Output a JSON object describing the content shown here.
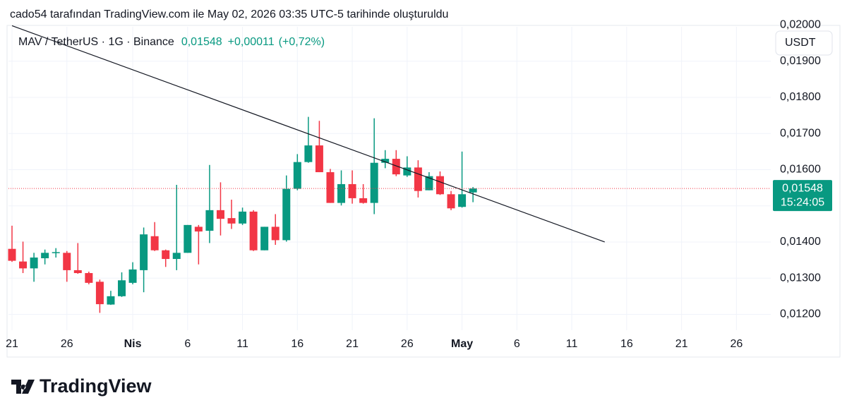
{
  "header": "cado54 tarafından TradingView.com ile May 02, 2026 03:35 UTC-5 tarihinde oluşturuldu",
  "brand": "TradingView",
  "chart_data": {
    "type": "candlestick",
    "symbol": "MAV / TetherUS · 1G · Binance",
    "last_price": {
      "value": 0.01548,
      "label": "0,01548"
    },
    "change": {
      "value": 0.00011,
      "label": "+0,00011"
    },
    "change_pct": {
      "value": 0.72,
      "label": "(+0,72%)"
    },
    "countdown": "15:24:05",
    "currency": "USDT",
    "up_color": "#089981",
    "down_color": "#f23645",
    "x": [
      "2026-03-21",
      "2026-03-22",
      "2026-03-23",
      "2026-03-24",
      "2026-03-25",
      "2026-03-26",
      "2026-03-27",
      "2026-03-28",
      "2026-03-29",
      "2026-03-30",
      "2026-03-31",
      "2026-04-01",
      "2026-04-02",
      "2026-04-03",
      "2026-04-04",
      "2026-04-05",
      "2026-04-06",
      "2026-04-07",
      "2026-04-08",
      "2026-04-09",
      "2026-04-10",
      "2026-04-11",
      "2026-04-12",
      "2026-04-13",
      "2026-04-14",
      "2026-04-15",
      "2026-04-16",
      "2026-04-17",
      "2026-04-18",
      "2026-04-19",
      "2026-04-20",
      "2026-04-21",
      "2026-04-22",
      "2026-04-23",
      "2026-04-24",
      "2026-04-25",
      "2026-04-26",
      "2026-04-27",
      "2026-04-28",
      "2026-04-29",
      "2026-04-30",
      "2026-05-01",
      "2026-05-02"
    ],
    "open": [
      0.01381,
      0.01346,
      0.01327,
      0.01355,
      0.0137,
      0.0137,
      0.01322,
      0.01314,
      0.0129,
      0.01227,
      0.0125,
      0.01287,
      0.01322,
      0.01416,
      0.01377,
      0.01353,
      0.0137,
      0.01442,
      0.01431,
      0.01488,
      0.01466,
      0.01451,
      0.01484,
      0.01377,
      0.01442,
      0.01405,
      0.01547,
      0.01621,
      0.01667,
      0.01593,
      0.01508,
      0.0156,
      0.01521,
      0.01508,
      0.01619,
      0.0163,
      0.01584,
      0.01606,
      0.01543,
      0.01582,
      0.01532,
      0.01497,
      0.01537
    ],
    "high": [
      0.01445,
      0.01401,
      0.0137,
      0.01379,
      0.01383,
      0.01375,
      0.01397,
      0.01318,
      0.01296,
      0.01265,
      0.01316,
      0.01344,
      0.0144,
      0.01455,
      0.01379,
      0.01558,
      0.01447,
      0.01447,
      0.01613,
      0.01565,
      0.01517,
      0.01495,
      0.01488,
      0.01442,
      0.01477,
      0.01584,
      0.01643,
      0.01746,
      0.01735,
      0.01602,
      0.01598,
      0.01598,
      0.0156,
      0.01742,
      0.01654,
      0.01654,
      0.01637,
      0.01626,
      0.01593,
      0.01595,
      0.01541,
      0.0165,
      0.01552
    ],
    "low": [
      0.01345,
      0.01314,
      0.0129,
      0.01338,
      0.01357,
      0.0129,
      0.01312,
      0.01283,
      0.01204,
      0.01226,
      0.01248,
      0.01283,
      0.01261,
      0.01375,
      0.01331,
      0.01322,
      0.0137,
      0.01338,
      0.01397,
      0.01418,
      0.01436,
      0.01447,
      0.01375,
      0.01377,
      0.01392,
      0.01401,
      0.01543,
      0.01619,
      0.01593,
      0.01508,
      0.01501,
      0.01506,
      0.01506,
      0.01477,
      0.01604,
      0.01582,
      0.0158,
      0.01523,
      0.01543,
      0.0153,
      0.01488,
      0.01495,
      0.0151
    ],
    "close": [
      0.01348,
      0.01327,
      0.01357,
      0.0137,
      0.01372,
      0.01322,
      0.01314,
      0.01287,
      0.01228,
      0.0125,
      0.01294,
      0.01324,
      0.01421,
      0.01377,
      0.01353,
      0.0137,
      0.01447,
      0.01429,
      0.01488,
      0.01464,
      0.01451,
      0.01484,
      0.01377,
      0.01442,
      0.01405,
      0.01547,
      0.01621,
      0.01667,
      0.01593,
      0.01508,
      0.0156,
      0.01521,
      0.01508,
      0.01619,
      0.0163,
      0.01587,
      0.01606,
      0.01541,
      0.01582,
      0.01532,
      0.01493,
      0.01532,
      0.01548
    ],
    "trendline": {
      "x": [
        "2026-03-21",
        "2026-05-14"
      ],
      "y": [
        0.01998,
        0.014
      ]
    },
    "xlim": [
      "2026-03-21",
      "2026-05-29"
    ],
    "xticks": [
      {
        "value": "2026-03-21",
        "label": "21"
      },
      {
        "value": "2026-03-26",
        "label": "26"
      },
      {
        "value": "2026-04-01",
        "label": "Nis"
      },
      {
        "value": "2026-04-06",
        "label": "6"
      },
      {
        "value": "2026-04-11",
        "label": "11"
      },
      {
        "value": "2026-04-16",
        "label": "16"
      },
      {
        "value": "2026-04-21",
        "label": "21"
      },
      {
        "value": "2026-04-26",
        "label": "26"
      },
      {
        "value": "2026-05-01",
        "label": "May"
      },
      {
        "value": "2026-05-06",
        "label": "6"
      },
      {
        "value": "2026-05-11",
        "label": "11"
      },
      {
        "value": "2026-05-16",
        "label": "16"
      },
      {
        "value": "2026-05-21",
        "label": "21"
      },
      {
        "value": "2026-05-26",
        "label": "26"
      }
    ],
    "ylim": [
      0.01156,
      0.01995
    ],
    "yticks": [
      {
        "value": 0.012,
        "label": "0,01200"
      },
      {
        "value": 0.013,
        "label": "0,01300"
      },
      {
        "value": 0.014,
        "label": "0,01400"
      },
      {
        "value": 0.015,
        "label": "0,01500"
      },
      {
        "value": 0.016,
        "label": "0,01600"
      },
      {
        "value": 0.017,
        "label": "0,01700"
      },
      {
        "value": 0.018,
        "label": "0,01800"
      },
      {
        "value": 0.019,
        "label": "0,01900"
      },
      {
        "value": 0.02,
        "label": "0,02000"
      }
    ],
    "grid": true
  }
}
